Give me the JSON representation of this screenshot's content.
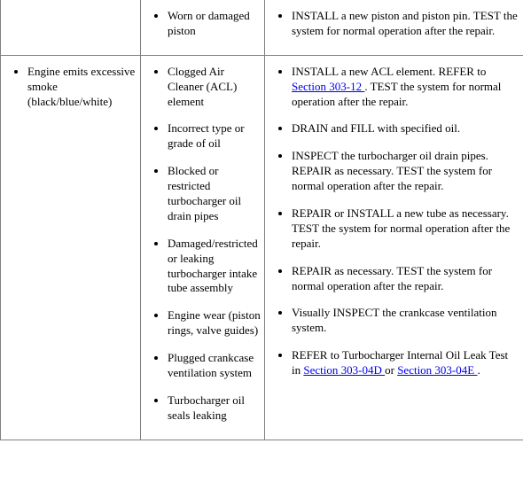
{
  "row1": {
    "condition": "",
    "cause1": "Worn or damaged piston",
    "action1": "INSTALL a new piston and piston pin. TEST the system for normal operation after the repair."
  },
  "row2": {
    "condition": "Engine emits excessive smoke (black/blue/white)",
    "cause1": "Clogged Air Cleaner (ACL) element",
    "cause2": "Incorrect type or grade of oil",
    "cause3": "Blocked or restricted turbocharger oil drain pipes",
    "cause4": "Damaged/restricted or leaking turbocharger intake tube assembly",
    "cause5": "Engine wear (piston rings, valve guides)",
    "cause6": "Plugged crankcase ventilation system",
    "cause7": "Turbocharger oil seals leaking",
    "action1a": "INSTALL a new ACL element. REFER to ",
    "action1link": "Section 303-12 ",
    "action1b": ". TEST the system for normal operation after the repair.",
    "action2": "DRAIN and FILL with specified oil.",
    "action3": "INSPECT the turbocharger oil drain pipes. REPAIR as necessary. TEST the system for normal operation after the repair.",
    "action4": "REPAIR or INSTALL a new tube as necessary. TEST the system for normal operation after the repair.",
    "action5": "REPAIR as necessary. TEST the system for normal operation after the repair.",
    "action6": "Visually INSPECT the crankcase ventilation system.",
    "action7a": "REFER to Turbocharger Internal Oil Leak Test in ",
    "action7link1": "Section 303-04D ",
    "action7mid": "or ",
    "action7link2": "Section 303-04E ",
    "action7b": "."
  }
}
